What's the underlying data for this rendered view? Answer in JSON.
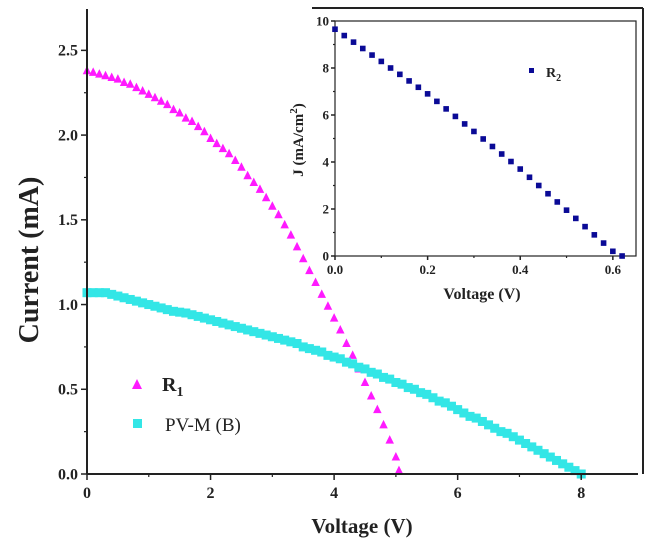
{
  "chart_data": [
    {
      "type": "scatter",
      "xlabel": "Voltage (V)",
      "ylabel": "Current (mA)",
      "xlim": [
        0,
        9
      ],
      "ylim": [
        0,
        2.75
      ],
      "xticks": [
        "0",
        "2",
        "4",
        "6",
        "8"
      ],
      "yticks": [
        "0.0",
        "0.5",
        "1.0",
        "1.5",
        "2.0",
        "2.5"
      ],
      "grid": false,
      "legend_placement": "lower-left",
      "series": [
        {
          "name": "R",
          "name_sub": "1",
          "marker": "triangle",
          "color": "#ff1aff",
          "x": [
            0,
            0.1,
            0.2,
            0.3,
            0.4,
            0.5,
            0.6,
            0.7,
            0.8,
            0.9,
            1.0,
            1.1,
            1.2,
            1.3,
            1.4,
            1.5,
            1.6,
            1.7,
            1.8,
            1.9,
            2.0,
            2.1,
            2.2,
            2.3,
            2.4,
            2.5,
            2.6,
            2.7,
            2.8,
            2.9,
            3.0,
            3.1,
            3.2,
            3.3,
            3.4,
            3.5,
            3.6,
            3.7,
            3.8,
            3.9,
            4.0,
            4.1,
            4.2,
            4.3,
            4.4,
            4.5,
            4.6,
            4.7,
            4.8,
            4.9,
            5.0,
            5.05
          ],
          "y": [
            2.38,
            2.37,
            2.36,
            2.35,
            2.34,
            2.33,
            2.31,
            2.3,
            2.28,
            2.26,
            2.24,
            2.22,
            2.2,
            2.18,
            2.15,
            2.13,
            2.1,
            2.08,
            2.05,
            2.02,
            1.98,
            1.95,
            1.92,
            1.89,
            1.85,
            1.81,
            1.76,
            1.72,
            1.68,
            1.63,
            1.58,
            1.53,
            1.47,
            1.41,
            1.34,
            1.27,
            1.2,
            1.13,
            1.06,
            0.99,
            0.92,
            0.85,
            0.77,
            0.7,
            0.62,
            0.54,
            0.46,
            0.38,
            0.29,
            0.2,
            0.1,
            0.02
          ]
        },
        {
          "name": "PV-M (B)",
          "marker": "square",
          "color": "#33e6e6",
          "x": [
            0,
            0.1,
            0.2,
            0.3,
            0.4,
            0.5,
            0.6,
            0.7,
            0.8,
            0.9,
            1.0,
            1.1,
            1.2,
            1.3,
            1.4,
            1.5,
            1.6,
            1.7,
            1.8,
            1.9,
            2.0,
            2.1,
            2.2,
            2.3,
            2.4,
            2.5,
            2.6,
            2.7,
            2.8,
            2.9,
            3.0,
            3.1,
            3.2,
            3.3,
            3.4,
            3.5,
            3.6,
            3.7,
            3.8,
            3.9,
            4.0,
            4.1,
            4.2,
            4.3,
            4.4,
            4.5,
            4.6,
            4.7,
            4.8,
            4.9,
            5.0,
            5.1,
            5.2,
            5.3,
            5.4,
            5.5,
            5.6,
            5.7,
            5.8,
            5.9,
            6.0,
            6.1,
            6.2,
            6.3,
            6.4,
            6.5,
            6.6,
            6.7,
            6.8,
            6.9,
            7.0,
            7.1,
            7.2,
            7.3,
            7.4,
            7.5,
            7.6,
            7.7,
            7.8,
            7.9,
            8.0
          ],
          "y": [
            1.07,
            1.07,
            1.07,
            1.07,
            1.06,
            1.05,
            1.04,
            1.03,
            1.02,
            1.01,
            1.0,
            0.99,
            0.98,
            0.97,
            0.96,
            0.955,
            0.95,
            0.94,
            0.93,
            0.92,
            0.91,
            0.9,
            0.89,
            0.88,
            0.87,
            0.86,
            0.85,
            0.84,
            0.83,
            0.82,
            0.81,
            0.8,
            0.79,
            0.78,
            0.77,
            0.75,
            0.74,
            0.73,
            0.72,
            0.7,
            0.69,
            0.68,
            0.66,
            0.65,
            0.63,
            0.62,
            0.6,
            0.59,
            0.57,
            0.56,
            0.54,
            0.53,
            0.51,
            0.5,
            0.48,
            0.47,
            0.45,
            0.43,
            0.42,
            0.4,
            0.38,
            0.36,
            0.34,
            0.33,
            0.31,
            0.29,
            0.27,
            0.25,
            0.24,
            0.22,
            0.2,
            0.18,
            0.16,
            0.14,
            0.12,
            0.1,
            0.08,
            0.06,
            0.04,
            0.02,
            0.0
          ]
        }
      ]
    },
    {
      "type": "scatter",
      "xlabel": "Voltage (V)",
      "ylabel": "J (mA/cm",
      "ylabel_sup": "2",
      "ylabel_end": ")",
      "xlim": [
        0,
        0.65
      ],
      "ylim": [
        0,
        10
      ],
      "xticks": [
        "0.0",
        "0.2",
        "0.4",
        "0.6"
      ],
      "yticks": [
        "0",
        "2",
        "4",
        "6",
        "8",
        "10"
      ],
      "grid": false,
      "legend_placement": "top-right",
      "series": [
        {
          "name": "R",
          "name_sub": "2",
          "marker": "square",
          "color": "#0a0a96",
          "x": [
            0,
            0.02,
            0.04,
            0.06,
            0.08,
            0.1,
            0.12,
            0.14,
            0.16,
            0.18,
            0.2,
            0.22,
            0.24,
            0.26,
            0.28,
            0.3,
            0.32,
            0.34,
            0.36,
            0.38,
            0.4,
            0.42,
            0.44,
            0.46,
            0.48,
            0.5,
            0.52,
            0.54,
            0.56,
            0.58,
            0.6,
            0.62
          ],
          "y": [
            9.65,
            9.38,
            9.1,
            8.83,
            8.55,
            8.28,
            8.0,
            7.73,
            7.45,
            7.18,
            6.9,
            6.58,
            6.26,
            5.94,
            5.62,
            5.3,
            4.98,
            4.66,
            4.34,
            4.02,
            3.7,
            3.35,
            3.0,
            2.65,
            2.3,
            1.95,
            1.6,
            1.25,
            0.9,
            0.55,
            0.2,
            0.0
          ]
        }
      ]
    }
  ]
}
